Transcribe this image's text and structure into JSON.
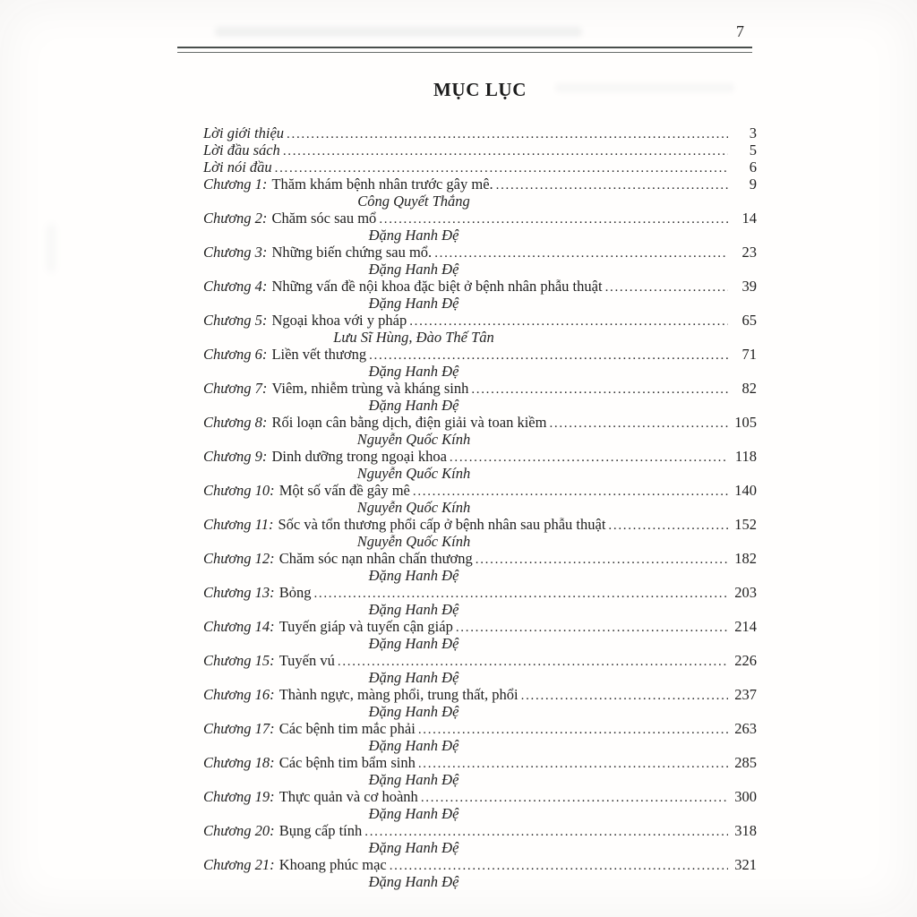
{
  "page": {
    "corner_number": "7"
  },
  "toc": {
    "title": "MỤC LỤC",
    "front_matter": [
      {
        "label": "Lời giới thiệu",
        "page": "3"
      },
      {
        "label": "Lời đầu sách",
        "page": "5"
      },
      {
        "label": "Lời nói đầu",
        "page": "6"
      }
    ],
    "chapters": [
      {
        "label": "Chương 1:",
        "title": "Thăm khám bệnh nhân trước gây mê.",
        "page": "9",
        "author": "Công Quyết Thắng"
      },
      {
        "label": "Chương 2:",
        "title": "Chăm sóc sau mổ",
        "page": "14",
        "author": "Đặng Hanh Đệ"
      },
      {
        "label": "Chương 3:",
        "title": "Những biến chứng sau mổ.",
        "page": "23",
        "author": "Đặng Hanh Đệ"
      },
      {
        "label": "Chương 4:",
        "title": "Những vấn đề nội khoa đặc biệt ở bệnh nhân phẫu thuật",
        "page": "39",
        "author": "Đặng Hanh Đệ"
      },
      {
        "label": "Chương 5:",
        "title": "Ngoại khoa với y pháp",
        "page": "65",
        "author": "Lưu Sĩ Hùng, Đào Thế Tân"
      },
      {
        "label": "Chương 6:",
        "title": "Liền vết thương",
        "page": "71",
        "author": "Đặng Hanh Đệ"
      },
      {
        "label": "Chương 7:",
        "title": "Viêm, nhiễm trùng và kháng sinh",
        "page": "82",
        "author": "Đặng Hanh Đệ"
      },
      {
        "label": "Chương 8:",
        "title": "Rối loạn cân bằng dịch, điện giải và toan kiềm",
        "page": "105",
        "author": "Nguyễn Quốc Kính"
      },
      {
        "label": "Chương 9:",
        "title": "Dinh dưỡng trong ngoại khoa",
        "page": "118",
        "author": "Nguyễn Quốc Kính"
      },
      {
        "label": "Chương 10:",
        "title": "Một số vấn đề gây mê",
        "page": "140",
        "author": "Nguyễn Quốc Kính"
      },
      {
        "label": "Chương 11:",
        "title": "Sốc và tổn thương phổi cấp ở bệnh nhân sau phẫu thuật",
        "page": "152",
        "author": "Nguyễn Quốc Kính"
      },
      {
        "label": "Chương 12:",
        "title": "Chăm sóc nạn nhân chấn thương",
        "page": "182",
        "author": "Đặng Hanh Đệ"
      },
      {
        "label": "Chương 13:",
        "title": "Bỏng",
        "page": "203",
        "author": "Đặng Hanh Đệ"
      },
      {
        "label": "Chương 14:",
        "title": "Tuyến giáp và tuyến cận giáp",
        "page": "214",
        "author": "Đặng Hanh Đệ"
      },
      {
        "label": "Chương 15:",
        "title": "Tuyến vú",
        "page": "226",
        "author": "Đặng Hanh Đệ"
      },
      {
        "label": "Chương 16:",
        "title": "Thành ngực, màng phổi, trung thất, phổi",
        "page": "237",
        "author": "Đặng Hanh Đệ"
      },
      {
        "label": "Chương 17:",
        "title": "Các bệnh tim mắc phải",
        "page": "263",
        "author": "Đặng Hanh Đệ"
      },
      {
        "label": "Chương 18:",
        "title": "Các bệnh tim bẩm sinh",
        "page": "285",
        "author": "Đặng Hanh Đệ"
      },
      {
        "label": "Chương 19:",
        "title": "Thực quản và cơ hoành",
        "page": "300",
        "author": "Đặng Hanh Đệ"
      },
      {
        "label": "Chương 20:",
        "title": "Bụng cấp tính",
        "page": "318",
        "author": "Đặng Hanh Đệ"
      },
      {
        "label": "Chương 21:",
        "title": "Khoang phúc mạc",
        "page": "321",
        "author": "Đặng Hanh Đệ"
      }
    ]
  }
}
